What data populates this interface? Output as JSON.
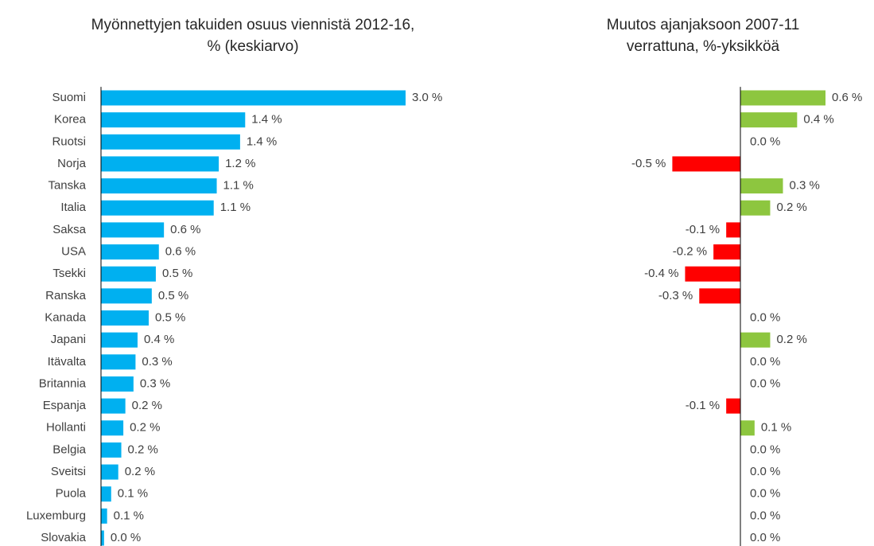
{
  "chart_data": [
    {
      "type": "bar",
      "orientation": "horizontal",
      "title": "Myönnettyjen takuiden osuus viennistä 2012-16,\n% (keskiarvo)",
      "categories": [
        "Suomi",
        "Korea",
        "Ruotsi",
        "Norja",
        "Tanska",
        "Italia",
        "Saksa",
        "USA",
        "Tsekki",
        "Ranska",
        "Kanada",
        "Japani",
        "Itävalta",
        "Britannia",
        "Espanja",
        "Hollanti",
        "Belgia",
        "Sveitsi",
        "Puola",
        "Luxemburg",
        "Slovakia"
      ],
      "values": [
        3.0,
        1.42,
        1.37,
        1.16,
        1.14,
        1.11,
        0.62,
        0.57,
        0.54,
        0.5,
        0.47,
        0.36,
        0.34,
        0.32,
        0.24,
        0.22,
        0.2,
        0.17,
        0.1,
        0.06,
        0.03
      ],
      "value_labels": [
        "3.0 %",
        "1.4 %",
        "1.4 %",
        "1.2 %",
        "1.1 %",
        "1.1 %",
        "0.6 %",
        "0.6 %",
        "0.5 %",
        "0.5 %",
        "0.5 %",
        "0.4 %",
        "0.3 %",
        "0.3 %",
        "0.2 %",
        "0.2 %",
        "0.2 %",
        "0.2 %",
        "0.1 %",
        "0.1 %",
        "0.0 %"
      ],
      "color": "#00b0f0",
      "xlim": [
        0,
        3.0
      ]
    },
    {
      "type": "bar",
      "orientation": "horizontal",
      "title": "Muutos ajanjaksoon 2007-11\nverrattuna, %-yksikköä",
      "values": [
        0.6,
        0.4,
        0,
        -0.48,
        0.3,
        0.21,
        -0.1,
        -0.19,
        -0.39,
        -0.29,
        0,
        0.21,
        0,
        0,
        -0.1,
        0.1,
        0,
        0,
        0,
        0,
        0
      ],
      "value_labels": [
        "0.6 %",
        "0.4 %",
        "0.0 %",
        "-0.5 %",
        "0.3 %",
        "0.2 %",
        "-0.1 %",
        "-0.2 %",
        "-0.4 %",
        "-0.3 %",
        "0.0 %",
        "0.2 %",
        "0.0 %",
        "0.0 %",
        "-0.1 %",
        "0.1 %",
        "0.0 %",
        "0.0 %",
        "0.0 %",
        "0.0 %",
        "0.0 %"
      ],
      "positive_color": "#8dc63f",
      "negative_color": "#ff0000",
      "xlim": [
        -0.6,
        0.6
      ]
    }
  ]
}
